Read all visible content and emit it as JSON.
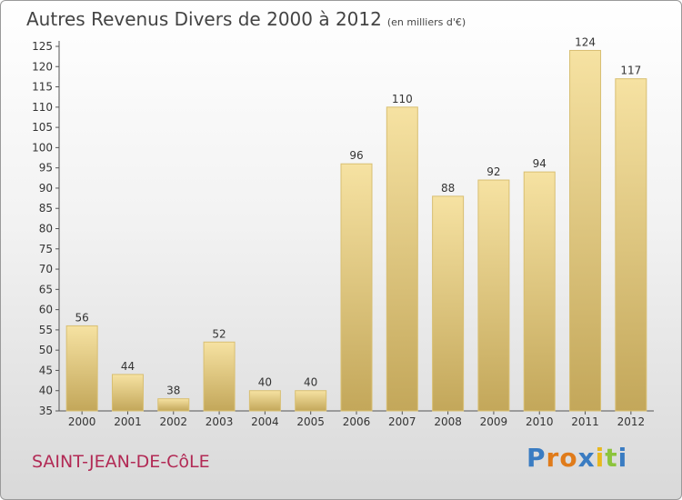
{
  "header": {
    "title": "Autres Revenus Divers de 2000 à 2012",
    "unit": "(en milliers d'€)"
  },
  "footer": {
    "commune": "SAINT-JEAN-DE-CôLE",
    "logo": "Proxiti"
  },
  "colors": {
    "bar_light": "#f6e2a2",
    "bar_dark": "#c3a75a",
    "bar_edge": "#d8bf72",
    "commune": "#b22a55"
  },
  "chart_data": {
    "type": "bar",
    "categories": [
      "2000",
      "2001",
      "2002",
      "2003",
      "2004",
      "2005",
      "2006",
      "2007",
      "2008",
      "2009",
      "2010",
      "2011",
      "2012"
    ],
    "values": [
      56,
      44,
      38,
      52,
      40,
      40,
      96,
      110,
      88,
      92,
      94,
      124,
      117
    ],
    "labels": [
      "56",
      "44",
      "38",
      "52",
      "40",
      "40",
      "96",
      "110",
      "88",
      "92",
      "94",
      "124",
      "117"
    ],
    "ylim": [
      35,
      125
    ],
    "yticks": [
      35,
      40,
      45,
      50,
      55,
      60,
      65,
      70,
      75,
      80,
      85,
      90,
      95,
      100,
      105,
      110,
      115,
      120,
      125
    ],
    "grid": false
  }
}
